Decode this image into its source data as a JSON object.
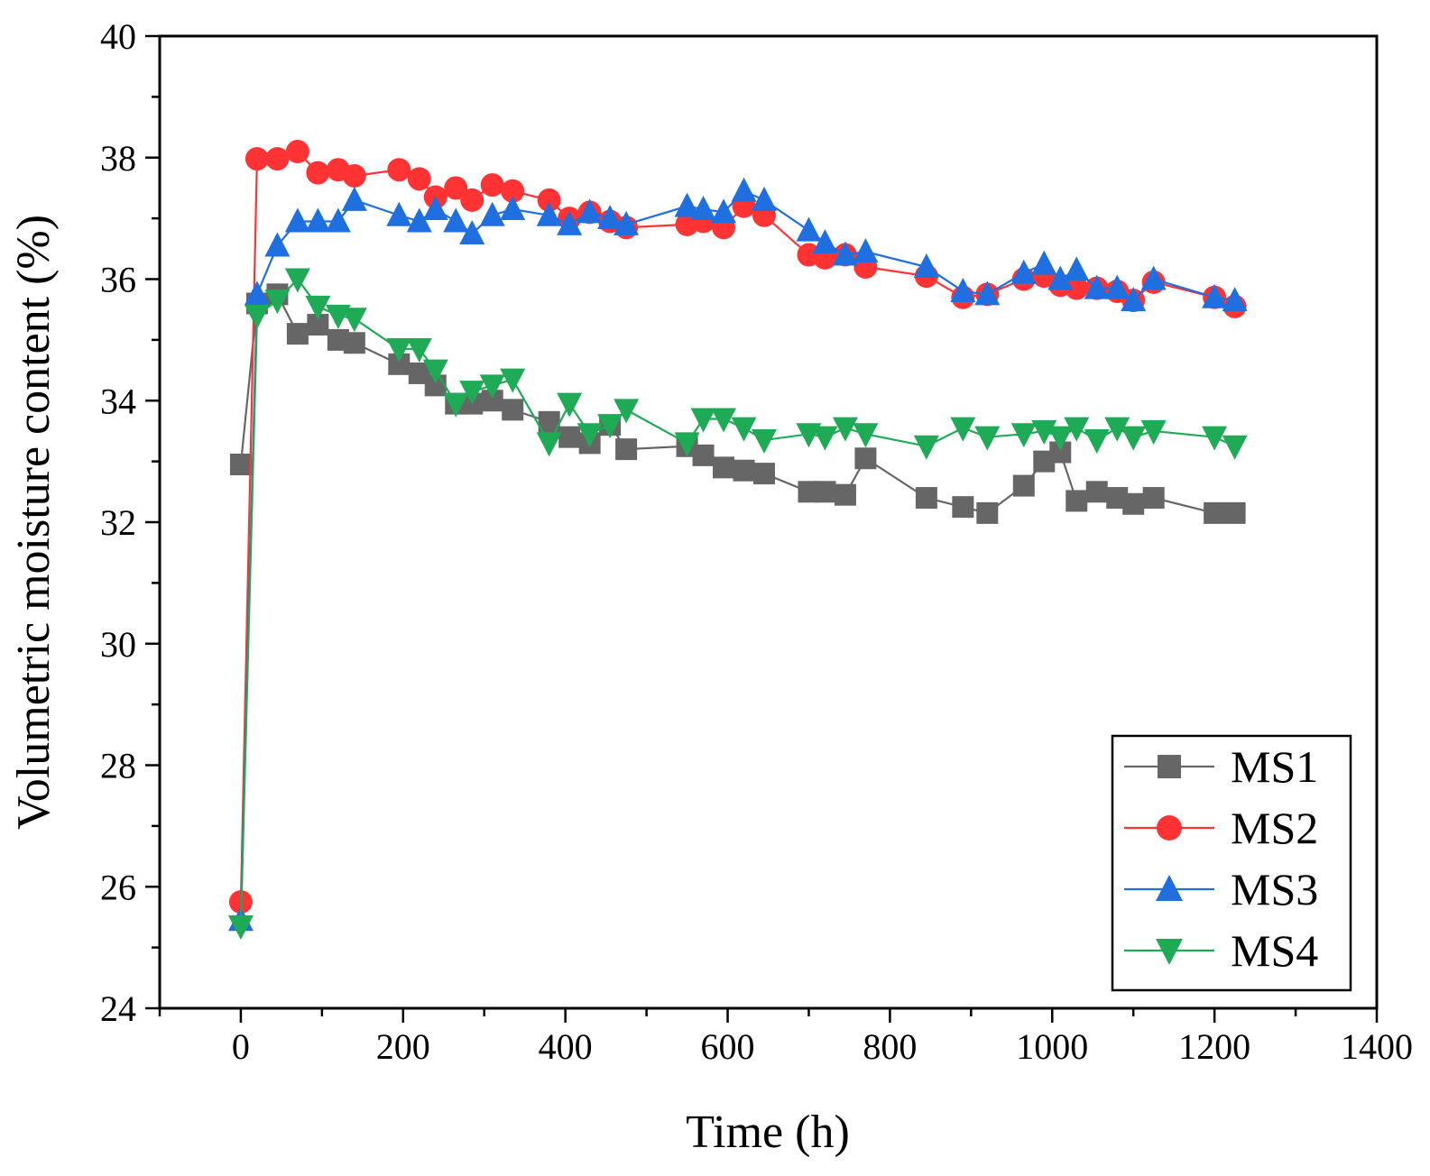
{
  "chart_data": {
    "type": "line",
    "title": "",
    "xlabel": "Time (h)",
    "ylabel": "Volumetric moisture content (%)",
    "xlim": [
      -100,
      1400
    ],
    "ylim": [
      24,
      40
    ],
    "x_ticks": [
      0,
      200,
      400,
      600,
      800,
      1000,
      1200,
      1400
    ],
    "y_ticks": [
      24,
      26,
      28,
      30,
      32,
      34,
      36,
      38,
      40
    ],
    "grid": false,
    "legend_position": "bottom-right",
    "series": [
      {
        "name": "MS1",
        "color": "#666666",
        "marker": "square",
        "x": [
          0,
          20,
          45,
          70,
          95,
          120,
          140,
          195,
          220,
          240,
          265,
          285,
          310,
          335,
          380,
          405,
          430,
          455,
          475,
          550,
          570,
          595,
          620,
          645,
          700,
          720,
          745,
          770,
          845,
          890,
          920,
          965,
          990,
          1010,
          1030,
          1055,
          1080,
          1100,
          1125,
          1200,
          1225
        ],
        "y": [
          32.95,
          35.6,
          35.75,
          35.1,
          35.25,
          35.0,
          34.95,
          34.6,
          34.45,
          34.25,
          33.95,
          33.95,
          34.0,
          33.85,
          33.65,
          33.4,
          33.3,
          33.6,
          33.2,
          33.25,
          33.1,
          32.9,
          32.85,
          32.8,
          32.5,
          32.5,
          32.45,
          33.05,
          32.4,
          32.25,
          32.15,
          32.6,
          33.0,
          33.15,
          32.35,
          32.5,
          32.4,
          32.3,
          32.4,
          32.15,
          32.15
        ]
      },
      {
        "name": "MS2",
        "color": "#ff3333",
        "marker": "circle",
        "x": [
          0,
          20,
          45,
          70,
          95,
          120,
          140,
          195,
          220,
          240,
          265,
          285,
          310,
          335,
          380,
          405,
          430,
          455,
          475,
          550,
          570,
          595,
          620,
          645,
          700,
          720,
          745,
          770,
          845,
          890,
          920,
          965,
          990,
          1010,
          1030,
          1055,
          1080,
          1100,
          1125,
          1200,
          1225
        ],
        "y": [
          25.75,
          37.98,
          37.98,
          38.1,
          37.75,
          37.8,
          37.7,
          37.8,
          37.65,
          37.35,
          37.5,
          37.3,
          37.55,
          37.45,
          37.3,
          37.0,
          37.1,
          36.95,
          36.85,
          36.9,
          36.95,
          36.85,
          37.2,
          37.05,
          36.4,
          36.35,
          36.4,
          36.2,
          36.05,
          35.7,
          35.75,
          36.0,
          36.05,
          35.9,
          35.85,
          35.85,
          35.8,
          35.65,
          35.95,
          35.7,
          35.55
        ]
      },
      {
        "name": "MS3",
        "color": "#1f6fe0",
        "marker": "triangle-up",
        "x": [
          0,
          20,
          45,
          70,
          95,
          120,
          140,
          195,
          220,
          240,
          265,
          285,
          310,
          335,
          380,
          405,
          430,
          455,
          475,
          550,
          570,
          595,
          620,
          645,
          700,
          720,
          745,
          770,
          845,
          890,
          920,
          965,
          990,
          1010,
          1030,
          1055,
          1080,
          1100,
          1125,
          1200,
          1225
        ],
        "y": [
          25.45,
          35.75,
          36.55,
          36.95,
          36.95,
          36.95,
          37.3,
          37.05,
          36.95,
          37.15,
          36.95,
          36.75,
          37.05,
          37.15,
          37.05,
          36.9,
          37.1,
          37.0,
          36.9,
          37.2,
          37.15,
          37.1,
          37.45,
          37.3,
          36.8,
          36.6,
          36.4,
          36.45,
          36.2,
          35.8,
          35.75,
          36.1,
          36.25,
          36.0,
          36.15,
          35.85,
          35.85,
          35.65,
          36.0,
          35.7,
          35.65
        ]
      },
      {
        "name": "MS4",
        "color": "#1faa55",
        "marker": "triangle-down",
        "x": [
          0,
          20,
          45,
          70,
          95,
          120,
          140,
          195,
          220,
          240,
          265,
          285,
          310,
          335,
          380,
          405,
          430,
          455,
          475,
          550,
          570,
          595,
          620,
          645,
          700,
          720,
          745,
          770,
          845,
          890,
          920,
          965,
          990,
          1010,
          1030,
          1055,
          1080,
          1100,
          1125,
          1200,
          1225
        ],
        "y": [
          25.35,
          35.4,
          35.65,
          36.0,
          35.55,
          35.4,
          35.35,
          34.85,
          34.85,
          34.5,
          33.95,
          34.15,
          34.25,
          34.35,
          33.3,
          33.95,
          33.45,
          33.6,
          33.85,
          33.3,
          33.7,
          33.7,
          33.55,
          33.35,
          33.45,
          33.4,
          33.55,
          33.45,
          33.25,
          33.55,
          33.4,
          33.45,
          33.5,
          33.4,
          33.55,
          33.35,
          33.55,
          33.4,
          33.5,
          33.4,
          33.25
        ]
      }
    ]
  }
}
